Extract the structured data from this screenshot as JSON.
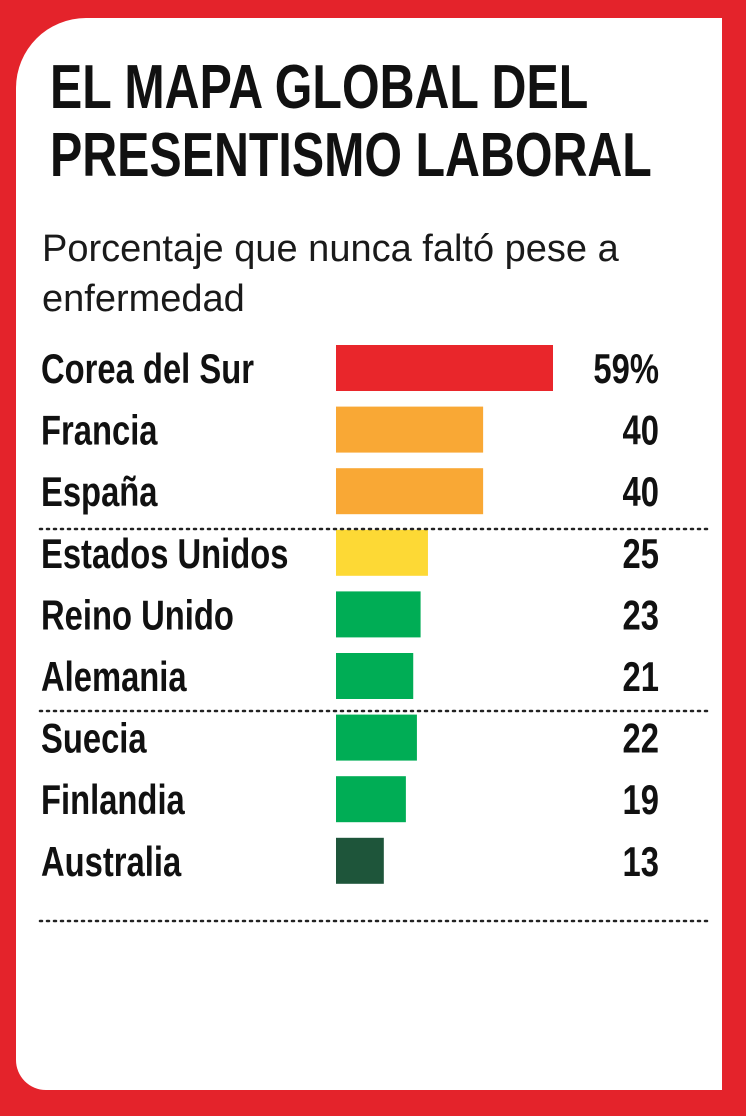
{
  "title": "EL MAPA GLOBAL DEL PRESENTISMO LABORAL",
  "subtitle": "Porcentaje que nunca faltó pese a enfermedad",
  "colors": {
    "frame": "#e4232b",
    "red": "#e9262b",
    "orange": "#f9a835",
    "yellow": "#fdd935",
    "green": "#00ad55",
    "dark_green": "#1e553a"
  },
  "chart_data": {
    "type": "bar",
    "orientation": "horizontal",
    "title": "EL MAPA GLOBAL DEL PRESENTISMO LABORAL",
    "subtitle": "Porcentaje que nunca faltó pese a enfermedad",
    "categories": [
      "Corea del Sur",
      "Francia",
      "España",
      "Estados Unidos",
      "Reino Unido",
      "Alemania",
      "Suecia",
      "Finlandia",
      "Australia"
    ],
    "values": [
      59,
      40,
      40,
      25,
      23,
      21,
      22,
      19,
      13
    ],
    "value_labels": [
      "59%",
      "40",
      "40",
      "25",
      "23",
      "21",
      "22",
      "19",
      "13"
    ],
    "bar_colors": [
      "#e9262b",
      "#f9a835",
      "#f9a835",
      "#fdd935",
      "#00ad55",
      "#00ad55",
      "#00ad55",
      "#00ad55",
      "#1e553a"
    ],
    "group_separators_after": [
      2,
      5,
      8
    ],
    "xlim": [
      0,
      59
    ],
    "grid": false,
    "legend": "none"
  }
}
